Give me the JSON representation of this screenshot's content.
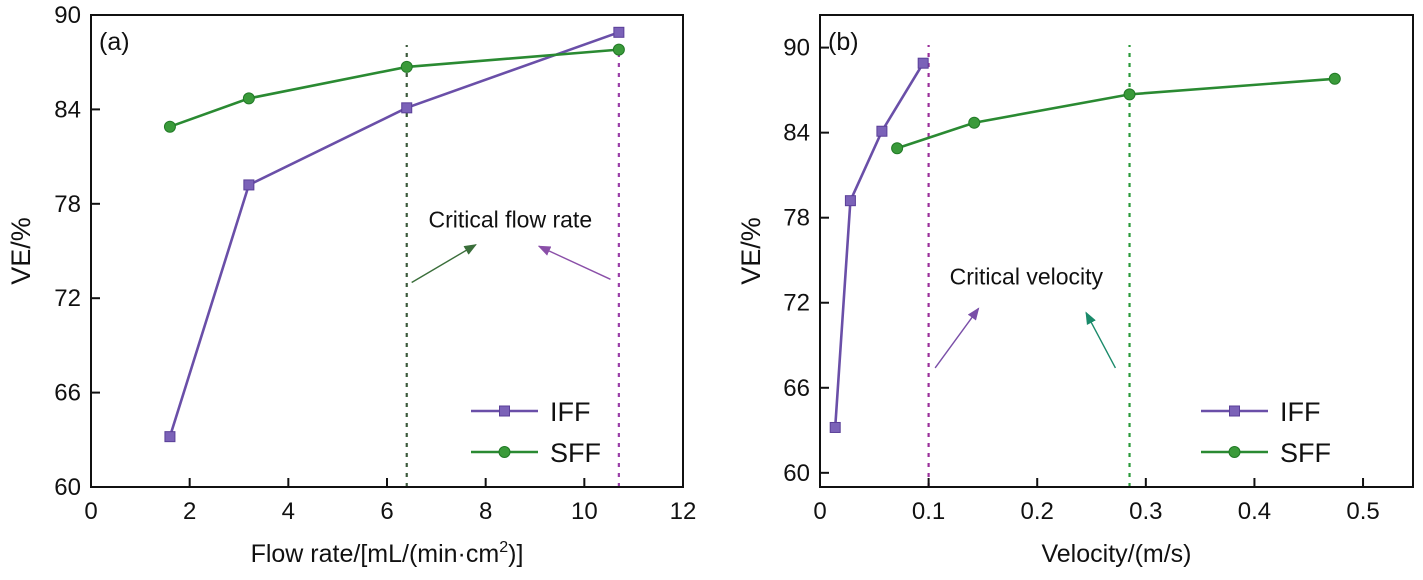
{
  "chart_data": [
    {
      "type": "line",
      "panel_label": "(a)",
      "xlabel_main": "Flow rate/[mL/(min·cm",
      "xlabel_sup": "2",
      "xlabel_end": ")]",
      "ylabel": "VE/%",
      "xlim": [
        0,
        12
      ],
      "ylim": [
        60,
        90
      ],
      "xticks": [
        "0",
        "2",
        "4",
        "6",
        "8",
        "10",
        "12"
      ],
      "xtick_values": [
        0,
        2,
        4,
        6,
        8,
        10,
        12
      ],
      "yticks": [
        "60",
        "66",
        "72",
        "78",
        "84",
        "90"
      ],
      "ytick_values": [
        60,
        66,
        72,
        78,
        84,
        90
      ],
      "grid": false,
      "legend_position": "bottom-right",
      "series": [
        {
          "name": "IFF",
          "marker": "square",
          "color": "#6a4fa8",
          "x": [
            1.6,
            3.2,
            6.4,
            10.7
          ],
          "y": [
            63.2,
            79.2,
            84.1,
            88.9
          ]
        },
        {
          "name": "SFF",
          "marker": "circle",
          "color": "#2a8a32",
          "x": [
            1.6,
            3.2,
            6.4,
            10.7
          ],
          "y": [
            82.9,
            84.7,
            86.7,
            87.8
          ]
        }
      ],
      "critical_lines": [
        {
          "x": 6.4,
          "color": "#3d5a3d"
        },
        {
          "x": 10.7,
          "color": "#9a3fa8"
        }
      ],
      "annotation": {
        "text": "Critical flow rate",
        "x": 8.5,
        "y": 76.5
      },
      "arrows": [
        {
          "from": [
            6.5,
            73.0
          ],
          "to": [
            7.8,
            75.4
          ],
          "color": "#3a6e3a"
        },
        {
          "from": [
            10.53,
            73.2
          ],
          "to": [
            9.08,
            75.3
          ],
          "color": "#8a4fa8"
        }
      ]
    },
    {
      "type": "line",
      "panel_label": "(b)",
      "xlabel_main": "Velocity/(m/s)",
      "xlabel_sup": "",
      "xlabel_end": "",
      "ylabel": "VE/%",
      "xlim": [
        0,
        0.546
      ],
      "ylim": [
        59.0,
        92.3
      ],
      "xticks": [
        "0",
        "0.1",
        "0.2",
        "0.3",
        "0.4",
        "0.5"
      ],
      "xtick_values": [
        0,
        0.1,
        0.2,
        0.3,
        0.4,
        0.5
      ],
      "yticks": [
        "60",
        "66",
        "72",
        "78",
        "84",
        "90"
      ],
      "ytick_values": [
        60,
        66,
        72,
        78,
        84,
        90
      ],
      "grid": false,
      "legend_position": "bottom-right",
      "series": [
        {
          "name": "IFF",
          "marker": "square",
          "color": "#6a4fa8",
          "x": [
            0.014,
            0.028,
            0.057,
            0.095
          ],
          "y": [
            63.2,
            79.2,
            84.1,
            88.9
          ]
        },
        {
          "name": "SFF",
          "marker": "circle",
          "color": "#2a8a32",
          "x": [
            0.071,
            0.142,
            0.285,
            0.474
          ],
          "y": [
            82.9,
            84.7,
            86.7,
            87.8
          ]
        }
      ],
      "critical_lines": [
        {
          "x": 0.1,
          "color": "#9a2f9a"
        },
        {
          "x": 0.285,
          "color": "#2a9a3a"
        }
      ],
      "annotation": {
        "text": "Critical velocity",
        "x": 0.19,
        "y": 73.3
      },
      "arrows": [
        {
          "from": [
            0.106,
            67.4
          ],
          "to": [
            0.146,
            71.6
          ],
          "color": "#7a4fa8"
        },
        {
          "from": [
            0.272,
            67.4
          ],
          "to": [
            0.245,
            71.3
          ],
          "color": "#1a8a6a"
        }
      ]
    }
  ]
}
